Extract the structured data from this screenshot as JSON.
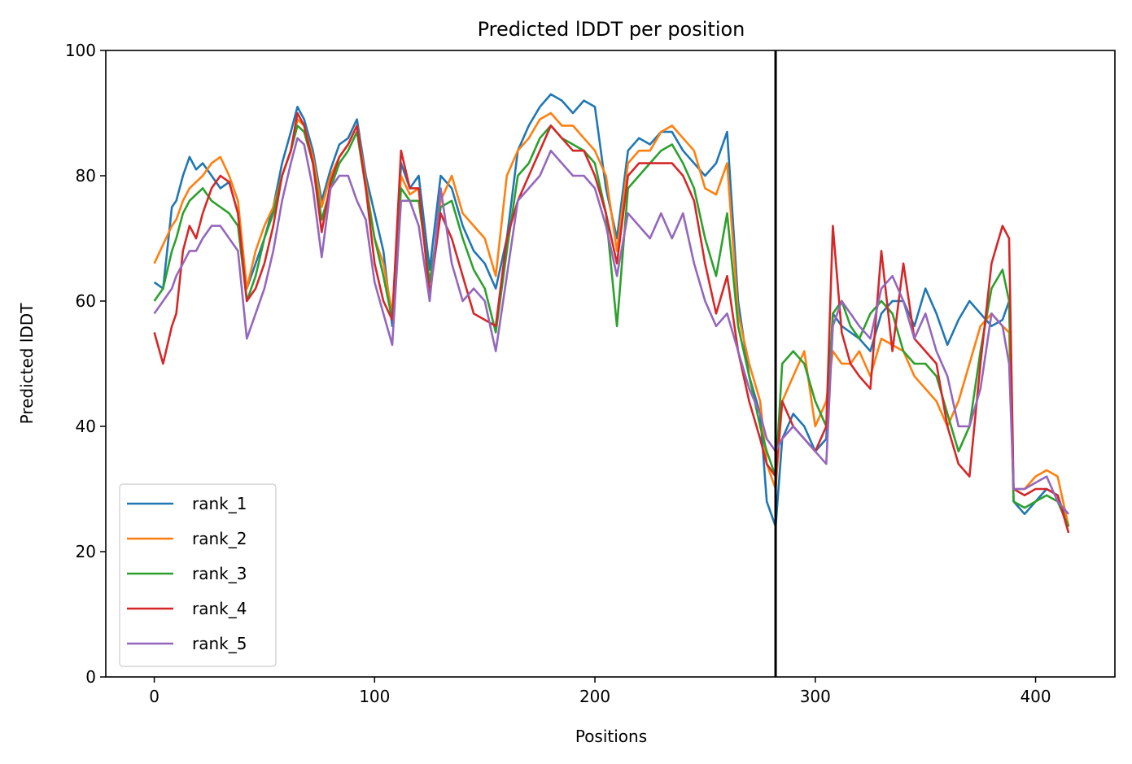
{
  "chart_data": {
    "type": "line",
    "title": "Predicted lDDT per position",
    "xlabel": "Positions",
    "ylabel": "Predicted lDDT",
    "xlim": [
      -22,
      436
    ],
    "ylim": [
      0,
      100
    ],
    "xticks": [
      0,
      100,
      200,
      300,
      400
    ],
    "yticks": [
      0,
      20,
      40,
      60,
      80,
      100
    ],
    "grid": false,
    "legend_position": "lower-left",
    "vline_x": 282,
    "colors": {
      "rank_1": "#1f77b4",
      "rank_2": "#ff7f0e",
      "rank_3": "#2ca02c",
      "rank_4": "#d62728",
      "rank_5": "#9467bd",
      "vline": "#000000"
    },
    "series": [
      {
        "name": "rank_1",
        "x": [
          0,
          4,
          8,
          10,
          13,
          16,
          19,
          22,
          26,
          30,
          34,
          38,
          42,
          46,
          50,
          54,
          58,
          62,
          65,
          68,
          72,
          76,
          80,
          84,
          88,
          92,
          96,
          100,
          104,
          108,
          112,
          116,
          120,
          125,
          130,
          135,
          140,
          145,
          150,
          155,
          160,
          165,
          170,
          175,
          180,
          185,
          190,
          195,
          200,
          205,
          210,
          215,
          220,
          225,
          230,
          235,
          240,
          245,
          250,
          255,
          260,
          265,
          270,
          275,
          278,
          282,
          285,
          290,
          295,
          300,
          305,
          308,
          312,
          316,
          320,
          325,
          330,
          335,
          340,
          345,
          350,
          355,
          360,
          365,
          370,
          375,
          380,
          385,
          388,
          390,
          395,
          400,
          405,
          410,
          415
        ],
        "y": [
          63,
          62,
          75,
          76,
          80,
          83,
          81,
          82,
          80,
          78,
          79,
          74,
          62,
          66,
          70,
          75,
          82,
          87,
          91,
          89,
          84,
          76,
          81,
          85,
          86,
          89,
          80,
          74,
          68,
          56,
          82,
          78,
          80,
          65,
          80,
          78,
          72,
          68,
          66,
          62,
          70,
          84,
          88,
          91,
          93,
          92,
          90,
          92,
          91,
          78,
          70,
          84,
          86,
          85,
          87,
          87,
          84,
          82,
          80,
          82,
          87,
          60,
          48,
          42,
          28,
          24,
          38,
          42,
          40,
          36,
          38,
          58,
          56,
          55,
          54,
          52,
          58,
          60,
          60,
          56,
          62,
          58,
          53,
          57,
          60,
          58,
          56,
          57,
          60,
          28,
          26,
          28,
          30,
          29,
          24
        ]
      },
      {
        "name": "rank_2",
        "x": [
          0,
          4,
          8,
          10,
          13,
          16,
          19,
          22,
          26,
          30,
          34,
          38,
          42,
          46,
          50,
          54,
          58,
          62,
          65,
          68,
          72,
          76,
          80,
          84,
          88,
          92,
          96,
          100,
          104,
          108,
          112,
          116,
          120,
          125,
          130,
          135,
          140,
          145,
          150,
          155,
          160,
          165,
          170,
          175,
          180,
          185,
          190,
          195,
          200,
          205,
          210,
          215,
          220,
          225,
          230,
          235,
          240,
          245,
          250,
          255,
          260,
          265,
          270,
          275,
          278,
          282,
          285,
          290,
          295,
          300,
          305,
          308,
          312,
          316,
          320,
          325,
          330,
          335,
          340,
          345,
          350,
          355,
          360,
          365,
          370,
          375,
          380,
          385,
          388,
          390,
          395,
          400,
          405,
          410,
          415
        ],
        "y": [
          66,
          69,
          72,
          73,
          76,
          78,
          79,
          80,
          82,
          83,
          80,
          76,
          62,
          68,
          72,
          75,
          80,
          84,
          89,
          88,
          83,
          75,
          80,
          83,
          85,
          88,
          79,
          70,
          66,
          58,
          80,
          77,
          78,
          61,
          76,
          80,
          74,
          72,
          70,
          64,
          80,
          84,
          86,
          89,
          90,
          88,
          88,
          86,
          84,
          80,
          68,
          82,
          84,
          84,
          87,
          88,
          86,
          84,
          78,
          77,
          82,
          58,
          50,
          44,
          34,
          30,
          44,
          48,
          52,
          40,
          44,
          52,
          50,
          50,
          52,
          48,
          54,
          53,
          52,
          48,
          46,
          44,
          40,
          44,
          50,
          56,
          58,
          56,
          55,
          30,
          30,
          32,
          33,
          32,
          24
        ]
      },
      {
        "name": "rank_3",
        "x": [
          0,
          4,
          8,
          10,
          13,
          16,
          19,
          22,
          26,
          30,
          34,
          38,
          42,
          46,
          50,
          54,
          58,
          62,
          65,
          68,
          72,
          76,
          80,
          84,
          88,
          92,
          96,
          100,
          104,
          108,
          112,
          116,
          120,
          125,
          130,
          135,
          140,
          145,
          150,
          155,
          160,
          165,
          170,
          175,
          180,
          185,
          190,
          195,
          200,
          205,
          210,
          215,
          220,
          225,
          230,
          235,
          240,
          245,
          250,
          255,
          260,
          265,
          270,
          275,
          278,
          282,
          285,
          290,
          295,
          300,
          305,
          308,
          312,
          316,
          320,
          325,
          330,
          335,
          340,
          345,
          350,
          355,
          360,
          365,
          370,
          375,
          380,
          385,
          388,
          390,
          395,
          400,
          405,
          410,
          415
        ],
        "y": [
          60,
          62,
          68,
          70,
          74,
          76,
          77,
          78,
          76,
          75,
          74,
          72,
          60,
          64,
          70,
          74,
          80,
          84,
          88,
          87,
          82,
          73,
          78,
          82,
          84,
          87,
          78,
          70,
          64,
          57,
          78,
          76,
          76,
          63,
          75,
          76,
          70,
          65,
          62,
          55,
          68,
          80,
          82,
          86,
          88,
          86,
          85,
          84,
          82,
          74,
          56,
          78,
          80,
          82,
          84,
          85,
          82,
          78,
          70,
          64,
          74,
          56,
          48,
          40,
          36,
          32,
          50,
          52,
          50,
          44,
          40,
          58,
          60,
          56,
          54,
          58,
          60,
          58,
          52,
          50,
          50,
          48,
          42,
          36,
          40,
          52,
          62,
          65,
          60,
          28,
          27,
          28,
          29,
          28,
          24
        ]
      },
      {
        "name": "rank_4",
        "x": [
          0,
          4,
          8,
          10,
          13,
          16,
          19,
          22,
          26,
          30,
          34,
          38,
          42,
          46,
          50,
          54,
          58,
          62,
          65,
          68,
          72,
          76,
          80,
          84,
          88,
          92,
          96,
          100,
          104,
          108,
          112,
          116,
          120,
          125,
          130,
          135,
          140,
          145,
          150,
          155,
          160,
          165,
          170,
          175,
          180,
          185,
          190,
          195,
          200,
          205,
          210,
          215,
          220,
          225,
          230,
          235,
          240,
          245,
          250,
          255,
          260,
          265,
          270,
          275,
          278,
          282,
          285,
          290,
          295,
          300,
          305,
          308,
          312,
          316,
          320,
          325,
          330,
          335,
          340,
          345,
          350,
          355,
          360,
          365,
          370,
          375,
          380,
          385,
          388,
          390,
          395,
          400,
          405,
          410,
          415
        ],
        "y": [
          55,
          50,
          56,
          58,
          68,
          72,
          70,
          74,
          78,
          80,
          79,
          74,
          60,
          62,
          66,
          72,
          80,
          84,
          90,
          88,
          82,
          71,
          79,
          83,
          85,
          88,
          78,
          66,
          60,
          57,
          84,
          78,
          78,
          61,
          74,
          70,
          64,
          58,
          57,
          56,
          70,
          76,
          80,
          84,
          88,
          86,
          84,
          84,
          80,
          74,
          66,
          80,
          82,
          82,
          82,
          82,
          80,
          76,
          66,
          58,
          64,
          52,
          44,
          38,
          34,
          32,
          44,
          40,
          38,
          36,
          40,
          72,
          55,
          50,
          48,
          46,
          68,
          52,
          66,
          54,
          52,
          50,
          40,
          34,
          32,
          50,
          66,
          72,
          70,
          30,
          29,
          30,
          30,
          29,
          23
        ]
      },
      {
        "name": "rank_5",
        "x": [
          0,
          4,
          8,
          10,
          13,
          16,
          19,
          22,
          26,
          30,
          34,
          38,
          42,
          46,
          50,
          54,
          58,
          62,
          65,
          68,
          72,
          76,
          80,
          84,
          88,
          92,
          96,
          100,
          104,
          108,
          112,
          116,
          120,
          125,
          130,
          135,
          140,
          145,
          150,
          155,
          160,
          165,
          170,
          175,
          180,
          185,
          190,
          195,
          200,
          205,
          210,
          215,
          220,
          225,
          230,
          235,
          240,
          245,
          250,
          255,
          260,
          265,
          270,
          275,
          278,
          282,
          285,
          290,
          295,
          300,
          305,
          308,
          312,
          316,
          320,
          325,
          330,
          335,
          340,
          345,
          350,
          355,
          360,
          365,
          370,
          375,
          380,
          385,
          388,
          390,
          395,
          400,
          405,
          410,
          415
        ],
        "y": [
          58,
          60,
          62,
          64,
          66,
          68,
          68,
          70,
          72,
          72,
          70,
          68,
          54,
          58,
          62,
          68,
          76,
          82,
          86,
          85,
          78,
          67,
          78,
          80,
          80,
          76,
          73,
          63,
          58,
          53,
          76,
          76,
          72,
          60,
          78,
          66,
          60,
          62,
          60,
          52,
          64,
          76,
          78,
          80,
          84,
          82,
          80,
          80,
          78,
          72,
          64,
          74,
          72,
          70,
          74,
          70,
          74,
          66,
          60,
          56,
          58,
          52,
          46,
          42,
          38,
          36,
          38,
          40,
          38,
          36,
          34,
          56,
          60,
          58,
          56,
          54,
          62,
          64,
          60,
          54,
          58,
          52,
          48,
          40,
          40,
          46,
          58,
          56,
          50,
          30,
          30,
          31,
          32,
          28,
          26
        ]
      }
    ]
  }
}
